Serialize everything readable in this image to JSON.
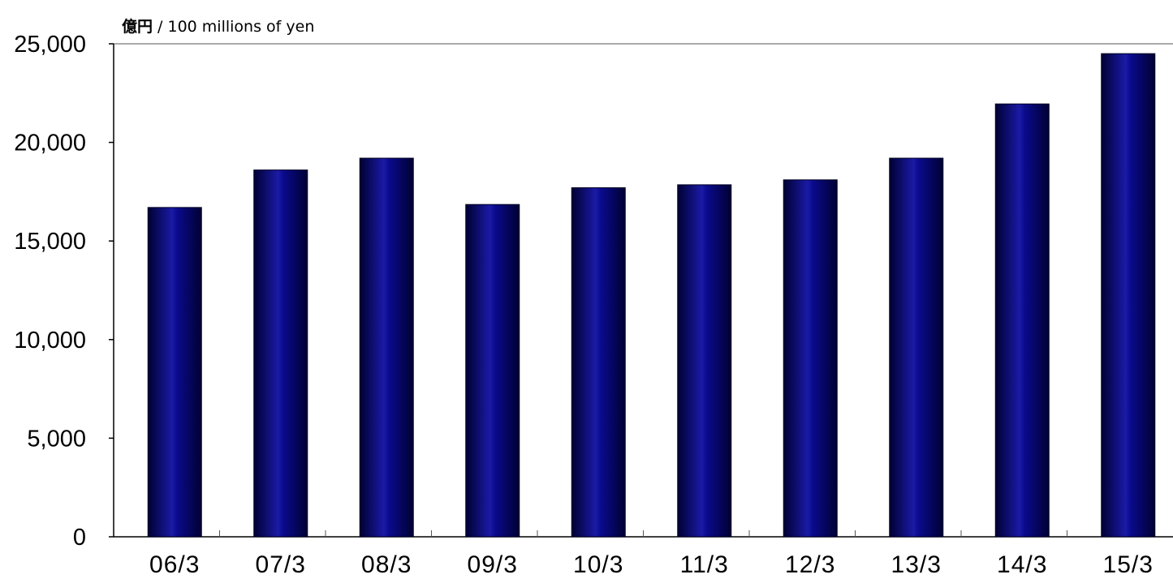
{
  "chart_data": {
    "type": "bar",
    "unit_label_jp": "億円",
    "unit_label_en": " / 100 millions of yen",
    "categories": [
      "06/3",
      "07/3",
      "08/3",
      "09/3",
      "10/3",
      "11/3",
      "12/3",
      "13/3",
      "14/3",
      "15/3"
    ],
    "values": [
      16700,
      18600,
      19200,
      16850,
      17700,
      17850,
      18100,
      19200,
      21950,
      24500
    ],
    "ylim": [
      0,
      25000
    ],
    "yticks": [
      0,
      5000,
      10000,
      15000,
      20000,
      25000
    ],
    "ytick_labels": [
      "0",
      "5,000",
      "10,000",
      "15,000",
      "20,000",
      "25,000"
    ],
    "grid": false,
    "bar_colors": {
      "edge": "#000033",
      "center": "#0a0a8c",
      "highlight": "#1a1aa6"
    }
  }
}
